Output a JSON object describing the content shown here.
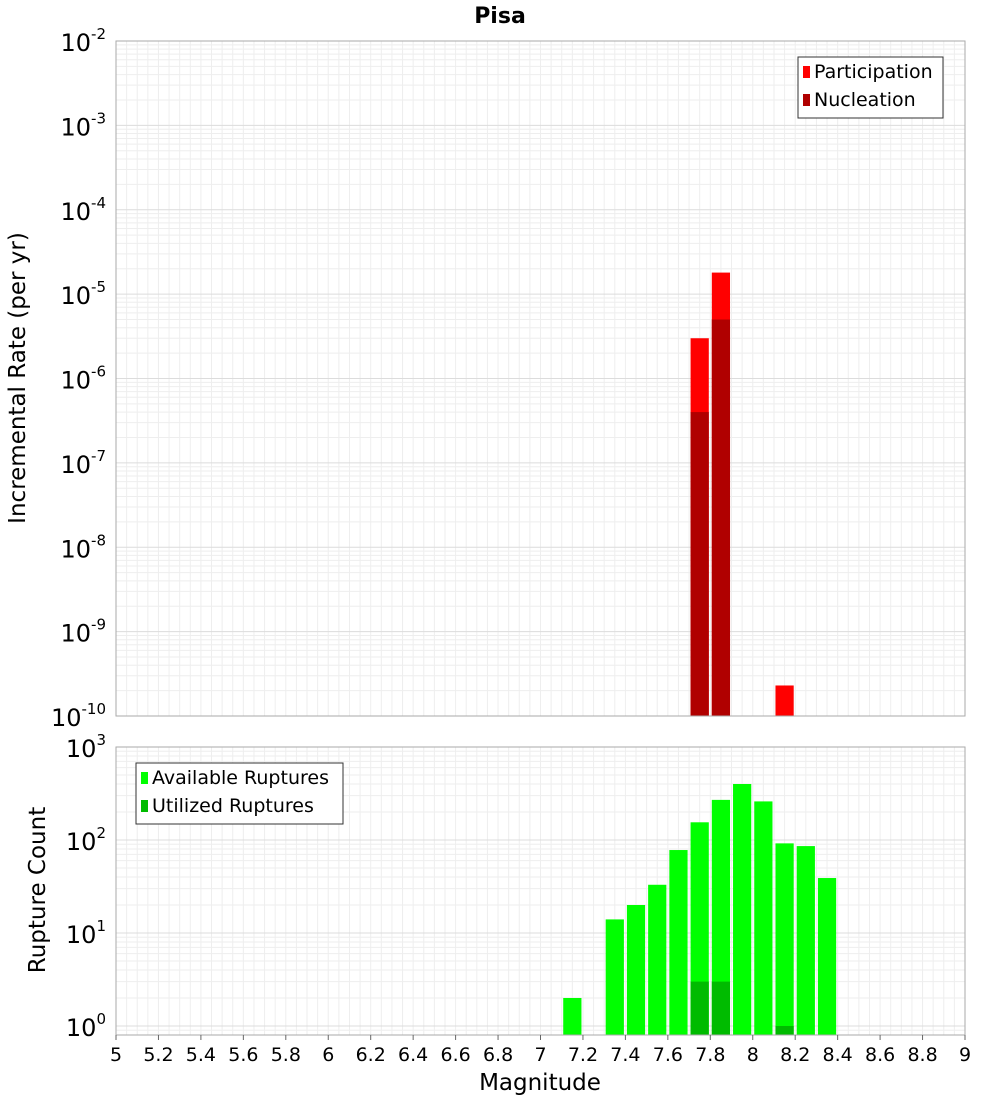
{
  "title": "Pisa",
  "xlabel": "Magnitude",
  "chart_data": [
    {
      "type": "bar",
      "title": "Pisa",
      "ylabel": "Incremental Rate (per yr)",
      "yscale": "log",
      "ylim": [
        1e-10,
        0.01
      ],
      "xlim": [
        5,
        9
      ],
      "bar_width": 0.1,
      "legend_position": "top-right",
      "grid": true,
      "y_ticks": [
        {
          "exp": "-2",
          "value": 0.01
        },
        {
          "exp": "-3",
          "value": 0.001
        },
        {
          "exp": "-4",
          "value": 0.0001
        },
        {
          "exp": "-5",
          "value": 1e-05
        },
        {
          "exp": "-6",
          "value": 1e-06
        },
        {
          "exp": "-7",
          "value": 1e-07
        },
        {
          "exp": "-8",
          "value": 1e-08
        },
        {
          "exp": "-9",
          "value": 1e-09
        },
        {
          "exp": "-10",
          "value": 1e-10
        }
      ],
      "series": [
        {
          "name": "Participation",
          "color": "#ff0000",
          "points": [
            {
              "x": 7.75,
              "y": 3e-06
            },
            {
              "x": 7.85,
              "y": 1.8e-05
            },
            {
              "x": 8.15,
              "y": 2.3e-10
            }
          ]
        },
        {
          "name": "Nucleation",
          "color": "#b00000",
          "points": [
            {
              "x": 7.75,
              "y": 4e-07
            },
            {
              "x": 7.85,
              "y": 5e-06
            }
          ]
        }
      ]
    },
    {
      "type": "bar",
      "ylabel": "Rupture Count",
      "yscale": "log",
      "ylim": [
        0.8,
        1000
      ],
      "xlim": [
        5,
        9
      ],
      "bar_width": 0.1,
      "legend_position": "top-left",
      "grid": true,
      "y_ticks": [
        {
          "exp": "3",
          "value": 1000
        },
        {
          "exp": "2",
          "value": 100
        },
        {
          "exp": "1",
          "value": 10
        },
        {
          "exp": "0",
          "value": 1
        }
      ],
      "series": [
        {
          "name": "Available Ruptures",
          "color": "#00ff00",
          "points": [
            {
              "x": 7.15,
              "y": 2
            },
            {
              "x": 7.35,
              "y": 14
            },
            {
              "x": 7.45,
              "y": 20
            },
            {
              "x": 7.55,
              "y": 33
            },
            {
              "x": 7.65,
              "y": 78
            },
            {
              "x": 7.75,
              "y": 155
            },
            {
              "x": 7.85,
              "y": 270
            },
            {
              "x": 7.95,
              "y": 400
            },
            {
              "x": 8.05,
              "y": 260
            },
            {
              "x": 8.15,
              "y": 92
            },
            {
              "x": 8.25,
              "y": 86
            },
            {
              "x": 8.35,
              "y": 39
            }
          ]
        },
        {
          "name": "Utilized Ruptures",
          "color": "#00bb00",
          "points": [
            {
              "x": 7.75,
              "y": 3
            },
            {
              "x": 7.85,
              "y": 3
            },
            {
              "x": 8.15,
              "y": 1
            }
          ]
        }
      ]
    }
  ],
  "x_ticks": [
    "5",
    "5.2",
    "5.4",
    "5.6",
    "5.8",
    "6",
    "6.2",
    "6.4",
    "6.6",
    "6.8",
    "7",
    "7.2",
    "7.4",
    "7.6",
    "7.8",
    "8",
    "8.2",
    "8.4",
    "8.6",
    "8.8",
    "9"
  ]
}
